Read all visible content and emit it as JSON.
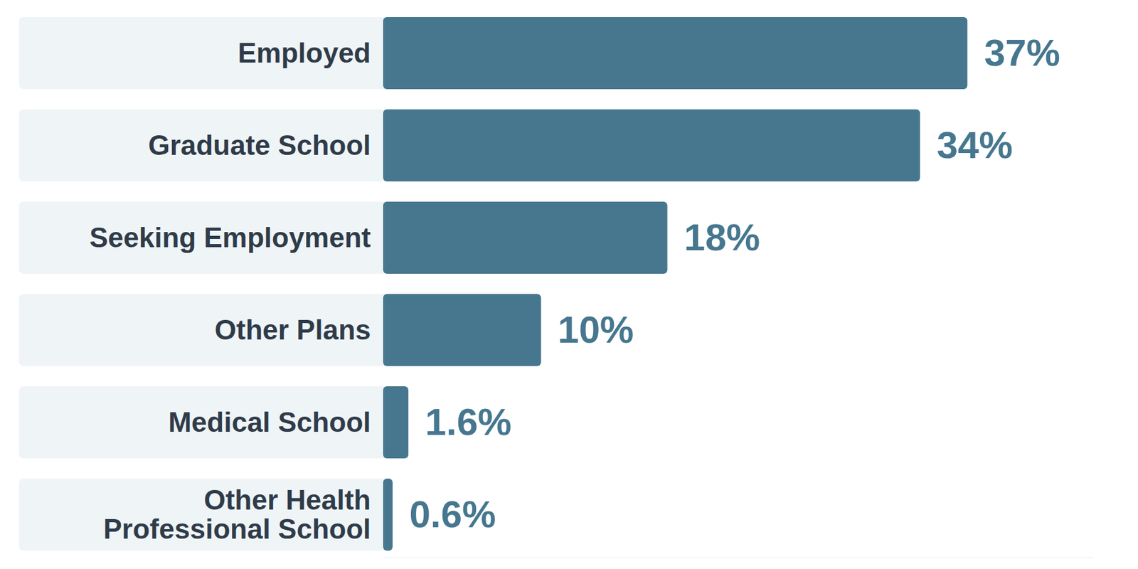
{
  "chart_data": {
    "type": "bar",
    "orientation": "horizontal",
    "categories": [
      "Employed",
      "Graduate School",
      "Seeking Employment",
      "Other Plans",
      "Medical School",
      "Other Health Professional School"
    ],
    "values": [
      37,
      34,
      18,
      10,
      1.6,
      0.6
    ],
    "value_labels": [
      "37%",
      "34%",
      "18%",
      "10%",
      "1.6%",
      "0.6%"
    ],
    "color": "#46778f",
    "xlim": [
      0,
      45
    ],
    "data_labels": true,
    "tick_labels": "y",
    "grid": false
  }
}
